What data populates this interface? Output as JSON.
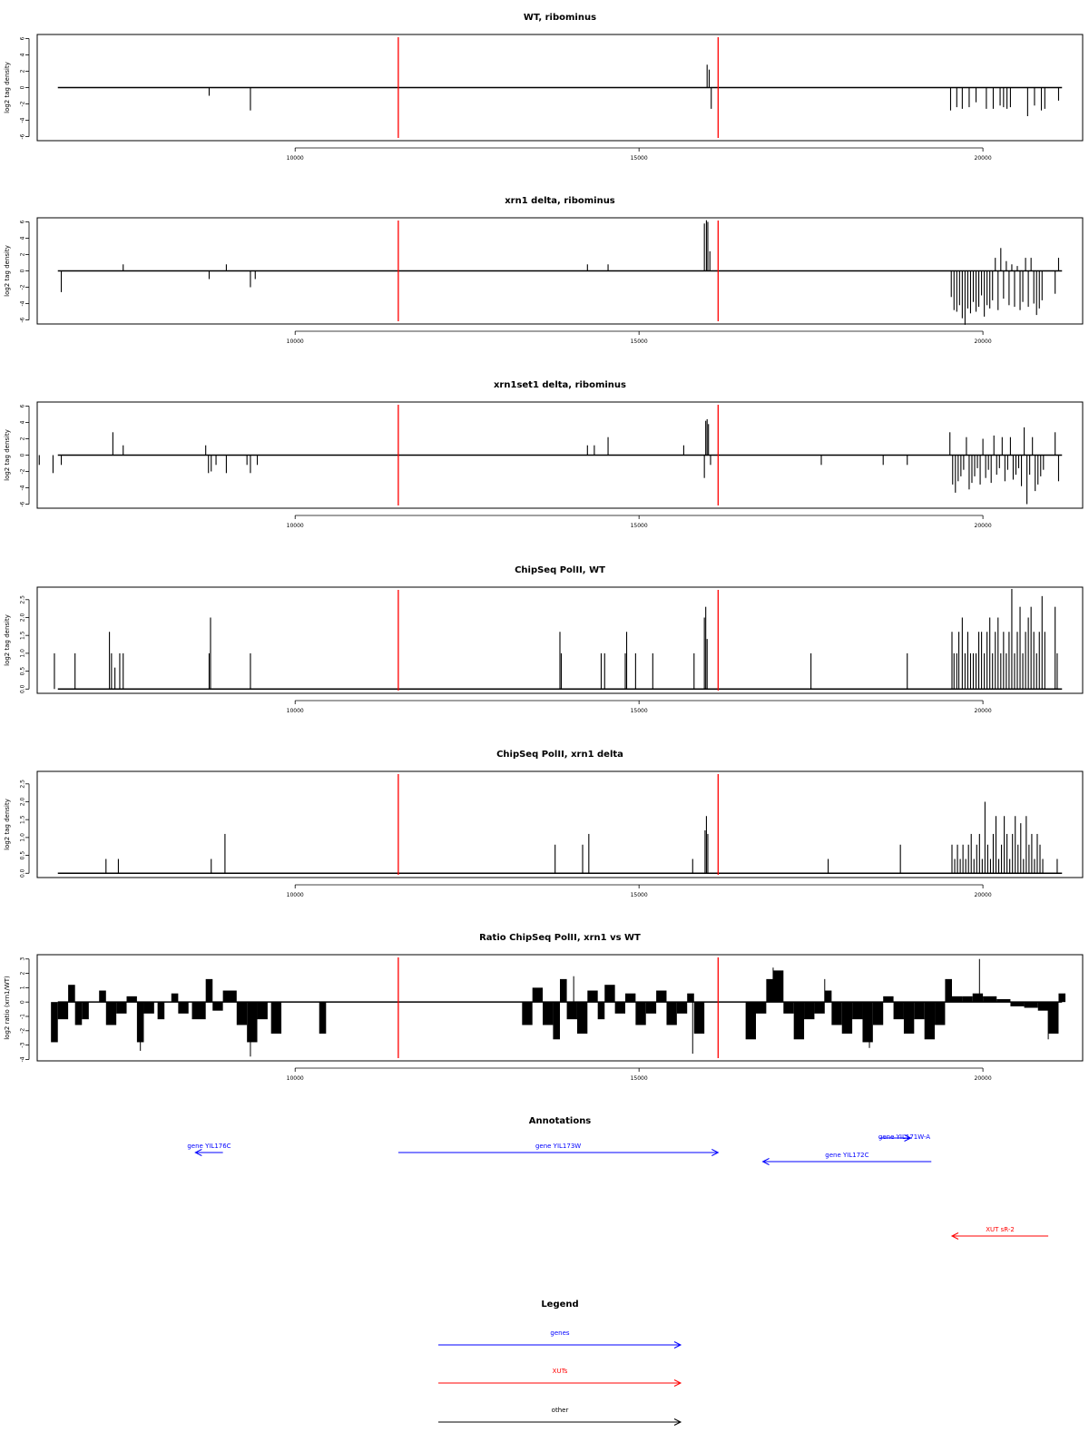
{
  "chart_data": [
    {
      "type": "bar",
      "title": "WT, ribominus",
      "ylabel": "log2 tag density",
      "ylim": [
        -6.5,
        6.5
      ],
      "yticks": [
        -6,
        -4,
        -2,
        0,
        2,
        4,
        6
      ],
      "xlim": [
        6250,
        21450
      ],
      "xticks": [
        10000,
        15000,
        20000
      ],
      "x": [
        8750,
        9350,
        15990,
        16020,
        16050,
        19530,
        19620,
        19700,
        19800,
        19900,
        20050,
        20150,
        20250,
        20300,
        20350,
        20400,
        20650,
        20750,
        20850,
        20900,
        21100
      ],
      "values": [
        -1,
        -2.8,
        2.8,
        2.2,
        -2.6,
        -2.8,
        -2.4,
        -2.6,
        -2.4,
        -1.8,
        -2.6,
        -2.6,
        -2.2,
        -2.4,
        -2.6,
        -2.4,
        -3.5,
        -2.2,
        -2.8,
        -2.6,
        -1.6
      ]
    },
    {
      "type": "bar",
      "title": "xrn1 delta, ribominus",
      "ylabel": "log2 tag density",
      "ylim": [
        -6.5,
        6.5
      ],
      "yticks": [
        -6,
        -4,
        -2,
        0,
        2,
        4,
        6
      ],
      "xlim": [
        6250,
        21450
      ],
      "xticks": [
        10000,
        15000,
        20000
      ],
      "x": [
        6600,
        7500,
        8750,
        9000,
        9350,
        9420,
        14250,
        14550,
        15950,
        15980,
        16000,
        16030,
        19540,
        19580,
        19620,
        19660,
        19700,
        19740,
        19780,
        19820,
        19860,
        19900,
        19940,
        19980,
        20020,
        20060,
        20100,
        20140,
        20180,
        20220,
        20260,
        20300,
        20340,
        20380,
        20420,
        20460,
        20500,
        20540,
        20580,
        20620,
        20660,
        20700,
        20740,
        20780,
        20820,
        20860,
        21050,
        21100
      ],
      "values": [
        -2.6,
        0.8,
        -1,
        0.8,
        -2,
        -1,
        0.8,
        0.8,
        5.8,
        6.2,
        6.0,
        2.4,
        -3.2,
        -4.8,
        -5.0,
        -4.2,
        -5.8,
        -6.6,
        -4.6,
        -5.2,
        -3.8,
        -5.0,
        -4.4,
        -3.0,
        -5.6,
        -4.2,
        -4.6,
        -3.6,
        1.6,
        -4.8,
        2.8,
        -3.4,
        1.2,
        -4.2,
        0.8,
        -4.4,
        0.6,
        -4.8,
        -3.8,
        1.6,
        -4.4,
        1.6,
        -4.0,
        -5.4,
        -4.6,
        -3.6,
        -2.8,
        1.6
      ]
    },
    {
      "type": "bar",
      "title": "xrn1set1 delta, ribominus",
      "ylabel": "log2 tag density",
      "ylim": [
        -6.5,
        6.5
      ],
      "yticks": [
        -6,
        -4,
        -2,
        0,
        2,
        4,
        6
      ],
      "xlim": [
        6250,
        21450
      ],
      "xticks": [
        10000,
        15000,
        20000
      ],
      "x": [
        6280,
        6480,
        6600,
        7350,
        7500,
        8700,
        8740,
        8780,
        8850,
        9000,
        9300,
        9350,
        9450,
        14250,
        14350,
        14550,
        15650,
        15950,
        15970,
        15990,
        16010,
        16040,
        17650,
        18550,
        18900,
        19520,
        19560,
        19600,
        19640,
        19680,
        19720,
        19760,
        19800,
        19840,
        19880,
        19920,
        19960,
        20000,
        20040,
        20080,
        20120,
        20160,
        20200,
        20240,
        20280,
        20320,
        20360,
        20400,
        20440,
        20480,
        20520,
        20560,
        20600,
        20640,
        20680,
        20720,
        20760,
        20800,
        20840,
        20880,
        21050,
        21100
      ],
      "values": [
        -1.2,
        -2.2,
        -1.2,
        2.8,
        1.2,
        1.2,
        -2.2,
        -2.0,
        -1.2,
        -2.2,
        -1.2,
        -2.2,
        -1.2,
        1.2,
        1.2,
        2.2,
        1.2,
        -2.8,
        4.2,
        4.4,
        3.8,
        -1.2,
        -1.2,
        -1.2,
        -1.2,
        2.8,
        -3.6,
        -4.6,
        -3.2,
        -2.6,
        -1.8,
        2.2,
        -4.2,
        -3.4,
        -2.6,
        -1.6,
        -3.6,
        2.0,
        -2.8,
        -1.8,
        -3.4,
        2.4,
        -2.4,
        -1.6,
        2.2,
        -3.2,
        -1.8,
        2.2,
        -3.0,
        -2.4,
        -1.6,
        -3.8,
        3.4,
        -6.0,
        -2.4,
        2.2,
        -4.4,
        -3.6,
        -2.6,
        -1.8,
        2.8,
        -3.2
      ]
    },
    {
      "type": "bar",
      "title": "ChipSeq PolII, WT",
      "ylabel": "log2 tag density",
      "ylim": [
        -0.12,
        2.85
      ],
      "yticks": [
        0.0,
        0.5,
        1.0,
        1.5,
        2.0,
        2.5
      ],
      "ytick_labels": [
        "0.0",
        "0.5",
        "1.0",
        "1.5",
        "2.0",
        "2.5"
      ],
      "xlim": [
        6250,
        21450
      ],
      "xticks": [
        10000,
        15000,
        20000
      ],
      "x": [
        6500,
        6800,
        7300,
        7330,
        7380,
        7450,
        7500,
        8750,
        8770,
        9350,
        13850,
        13870,
        14450,
        14500,
        14800,
        14820,
        14950,
        15200,
        15800,
        15950,
        15970,
        15990,
        17500,
        18900,
        19550,
        19580,
        19620,
        19650,
        19700,
        19740,
        19780,
        19820,
        19860,
        19900,
        19940,
        19980,
        20020,
        20060,
        20100,
        20140,
        20180,
        20220,
        20260,
        20300,
        20340,
        20380,
        20420,
        20460,
        20500,
        20540,
        20580,
        20620,
        20660,
        20700,
        20740,
        20780,
        20820,
        20860,
        20900,
        21050,
        21080
      ],
      "values": [
        1.0,
        1.0,
        1.6,
        1.0,
        0.6,
        1.0,
        1.0,
        1.0,
        2.0,
        1.0,
        1.6,
        1.0,
        1.0,
        1.0,
        1.0,
        1.6,
        1.0,
        1.0,
        1.0,
        2.0,
        2.3,
        1.4,
        1.0,
        1.0,
        1.6,
        1.0,
        1.0,
        1.6,
        2.0,
        1.0,
        1.6,
        1.0,
        1.0,
        1.0,
        1.6,
        1.6,
        1.0,
        1.6,
        2.0,
        1.0,
        1.6,
        2.0,
        1.0,
        1.6,
        1.0,
        1.6,
        2.8,
        1.0,
        1.6,
        2.3,
        1.0,
        1.6,
        2.0,
        2.3,
        1.6,
        1.0,
        1.6,
        2.6,
        1.6,
        2.3,
        1.0
      ]
    },
    {
      "type": "bar",
      "title": "ChipSeq PolII, xrn1 delta",
      "ylabel": "log2 tag density",
      "ylim": [
        -0.12,
        2.85
      ],
      "yticks": [
        0.0,
        0.5,
        1.0,
        1.5,
        2.0,
        2.5
      ],
      "ytick_labels": [
        "0.0",
        "0.5",
        "1.0",
        "1.5",
        "2.0",
        "2.5"
      ],
      "xlim": [
        6250,
        21450
      ],
      "xticks": [
        10000,
        15000,
        20000
      ],
      "x": [
        7250,
        7430,
        8780,
        8980,
        13780,
        14180,
        14270,
        15780,
        15960,
        15980,
        16000,
        17750,
        18800,
        19550,
        19590,
        19630,
        19670,
        19710,
        19750,
        19790,
        19830,
        19870,
        19910,
        19950,
        19990,
        20030,
        20070,
        20110,
        20150,
        20190,
        20230,
        20270,
        20310,
        20350,
        20390,
        20430,
        20470,
        20510,
        20550,
        20590,
        20630,
        20670,
        20710,
        20750,
        20790,
        20830,
        20870,
        21080
      ],
      "values": [
        0.4,
        0.4,
        0.4,
        1.1,
        0.8,
        0.8,
        1.1,
        0.4,
        1.2,
        1.6,
        1.1,
        0.4,
        0.8,
        0.8,
        0.4,
        0.8,
        0.4,
        0.8,
        0.4,
        0.8,
        1.1,
        0.4,
        0.8,
        1.1,
        0.4,
        2.0,
        0.8,
        0.4,
        1.1,
        1.6,
        0.4,
        0.8,
        1.6,
        1.1,
        0.4,
        1.1,
        1.6,
        0.8,
        1.4,
        0.4,
        1.6,
        0.8,
        1.1,
        0.4,
        1.1,
        0.8,
        0.4,
        0.4
      ]
    },
    {
      "type": "area",
      "title": "Ratio ChipSeq PolII, xrn1 vs WT",
      "ylabel": "log2 ratio (xrn1/WT)",
      "ylim": [
        -4.1,
        3.3
      ],
      "yticks": [
        -4,
        -3,
        -2,
        -1,
        0,
        1,
        2,
        3
      ],
      "xlim": [
        6250,
        21450
      ],
      "xticks": [
        10000,
        15000,
        20000
      ],
      "segments": [
        [
          6450,
          6550,
          -2.8
        ],
        [
          6550,
          6700,
          -1.2
        ],
        [
          6700,
          6800,
          1.2
        ],
        [
          6800,
          6900,
          -1.6
        ],
        [
          6900,
          7000,
          -1.2
        ],
        [
          7150,
          7250,
          0.8
        ],
        [
          7250,
          7400,
          -1.6
        ],
        [
          7400,
          7550,
          -0.8
        ],
        [
          7550,
          7700,
          0.4
        ],
        [
          7700,
          7800,
          -2.8
        ],
        [
          7800,
          7950,
          -0.8
        ],
        [
          8000,
          8100,
          -1.2
        ],
        [
          8200,
          8300,
          0.6
        ],
        [
          8300,
          8450,
          -0.8
        ],
        [
          8500,
          8700,
          -1.2
        ],
        [
          8700,
          8800,
          1.6
        ],
        [
          8800,
          8950,
          -0.6
        ],
        [
          8950,
          9150,
          0.8
        ],
        [
          9150,
          9300,
          -1.6
        ],
        [
          9300,
          9450,
          -2.8
        ],
        [
          9450,
          9600,
          -1.2
        ],
        [
          9650,
          9800,
          -2.2
        ],
        [
          10350,
          10450,
          -2.2
        ],
        [
          13300,
          13450,
          -1.6
        ],
        [
          13450,
          13600,
          1.0
        ],
        [
          13600,
          13750,
          -1.6
        ],
        [
          13750,
          13850,
          -2.6
        ],
        [
          13850,
          13950,
          1.6
        ],
        [
          13950,
          14100,
          -1.2
        ],
        [
          14100,
          14250,
          -2.2
        ],
        [
          14250,
          14400,
          0.8
        ],
        [
          14400,
          14500,
          -1.2
        ],
        [
          14500,
          14650,
          1.2
        ],
        [
          14650,
          14800,
          -0.8
        ],
        [
          14800,
          14950,
          0.6
        ],
        [
          14950,
          15100,
          -1.6
        ],
        [
          15100,
          15250,
          -0.8
        ],
        [
          15250,
          15400,
          0.8
        ],
        [
          15400,
          15550,
          -1.6
        ],
        [
          15550,
          15700,
          -0.8
        ],
        [
          15700,
          15800,
          0.6
        ],
        [
          15800,
          15950,
          -2.2
        ],
        [
          16550,
          16700,
          -2.6
        ],
        [
          16700,
          16850,
          -0.8
        ],
        [
          16850,
          16950,
          1.6
        ],
        [
          16950,
          17100,
          2.2
        ],
        [
          17100,
          17250,
          -0.8
        ],
        [
          17250,
          17400,
          -2.6
        ],
        [
          17400,
          17550,
          -1.2
        ],
        [
          17550,
          17700,
          -0.8
        ],
        [
          17700,
          17800,
          0.8
        ],
        [
          17800,
          17950,
          -1.6
        ],
        [
          17950,
          18100,
          -2.2
        ],
        [
          18100,
          18250,
          -1.2
        ],
        [
          18250,
          18400,
          -2.8
        ],
        [
          18400,
          18550,
          -1.6
        ],
        [
          18550,
          18700,
          0.4
        ],
        [
          18700,
          18850,
          -1.2
        ],
        [
          18850,
          19000,
          -2.2
        ],
        [
          19000,
          19150,
          -1.2
        ],
        [
          19150,
          19300,
          -2.6
        ],
        [
          19300,
          19450,
          -1.6
        ],
        [
          19450,
          19550,
          1.6
        ],
        [
          19550,
          19700,
          0.4
        ],
        [
          19700,
          19850,
          0.4
        ],
        [
          19850,
          20000,
          0.6
        ],
        [
          20000,
          20200,
          0.4
        ],
        [
          20200,
          20400,
          0.2
        ],
        [
          20400,
          20600,
          -0.3
        ],
        [
          20600,
          20800,
          -0.4
        ],
        [
          20800,
          20950,
          -0.6
        ],
        [
          20950,
          21100,
          -2.2
        ],
        [
          21100,
          21200,
          0.6
        ]
      ],
      "spikes": [
        [
          7750,
          -3.4
        ],
        [
          9350,
          -3.8
        ],
        [
          14050,
          1.8
        ],
        [
          15780,
          -3.6
        ],
        [
          16950,
          2.4
        ],
        [
          17700,
          1.6
        ],
        [
          18350,
          -3.2
        ],
        [
          19950,
          3.0
        ],
        [
          20950,
          -2.6
        ]
      ]
    }
  ],
  "markers": {
    "x": [
      11500,
      16150
    ],
    "color": "#ff0000"
  },
  "annotations": {
    "title": "Annotations",
    "items": [
      {
        "label": "gene YIL176C",
        "start": 8950,
        "end": 8550,
        "row": 0,
        "color": "#0000ff"
      },
      {
        "label": "gene YIL173W",
        "start": 11500,
        "end": 16150,
        "row": 0,
        "color": "#0000ff"
      },
      {
        "label": "gene YIL172C",
        "start": 19250,
        "end": 16800,
        "row": 1,
        "color": "#0000ff"
      },
      {
        "label": "gene YIL171W-A",
        "start": 18500,
        "end": 18950,
        "row": -1,
        "color": "#0000ff"
      },
      {
        "label": "XUT sR-2",
        "start": 20950,
        "end": 19550,
        "row": 4,
        "color": "#ff0000"
      }
    ]
  },
  "legend": {
    "title": "Legend",
    "items": [
      {
        "label": "genes",
        "color": "#0000ff"
      },
      {
        "label": "XUTs",
        "color": "#ff0000"
      },
      {
        "label": "other",
        "color": "#000000"
      }
    ]
  }
}
